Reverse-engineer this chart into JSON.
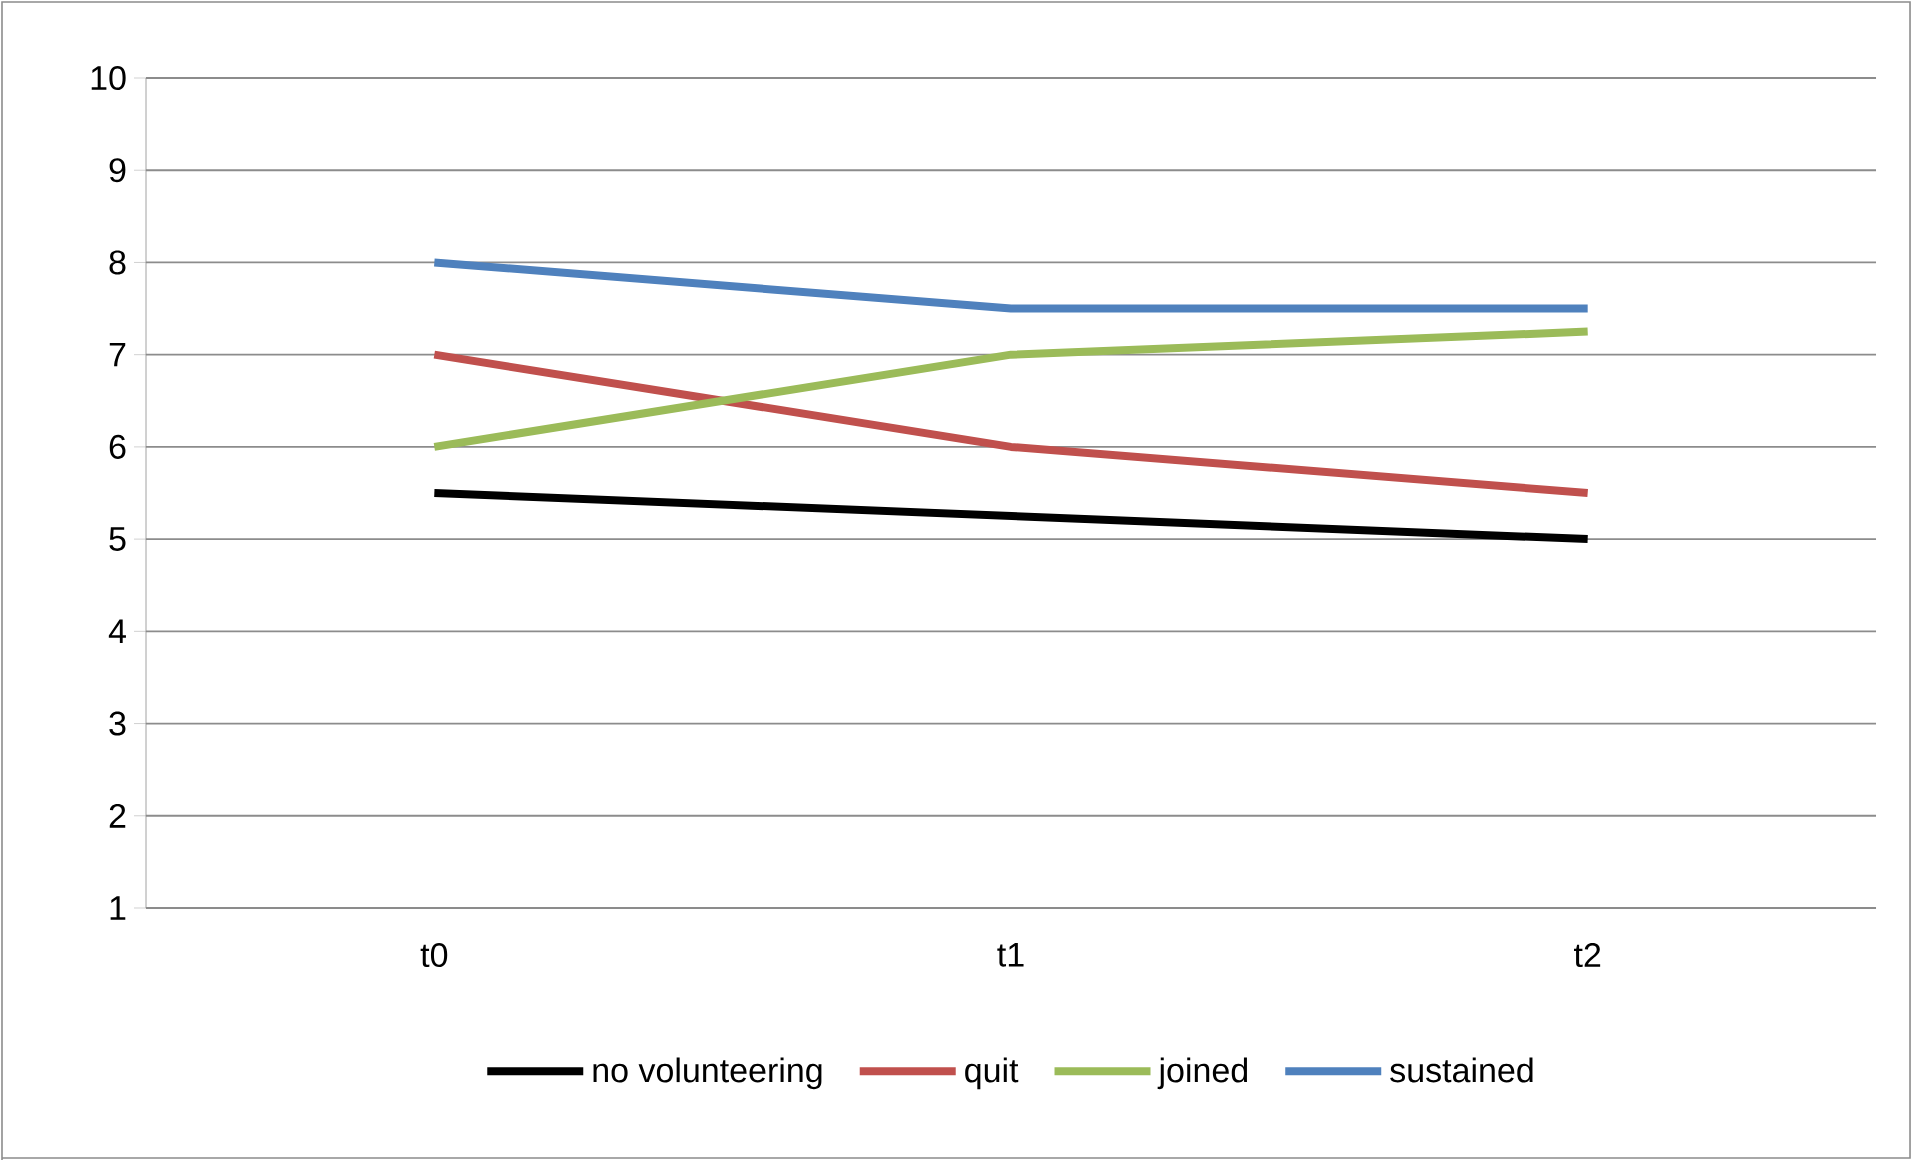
{
  "chart_data": {
    "type": "line",
    "categories": [
      "t0",
      "t1",
      "t2"
    ],
    "series": [
      {
        "name": "no volunteering",
        "color": "#000000",
        "values": [
          5.5,
          5.25,
          5.0
        ]
      },
      {
        "name": "quit",
        "color": "#c0504d",
        "values": [
          7,
          6,
          5.5
        ]
      },
      {
        "name": "joined",
        "color": "#9bbb59",
        "values": [
          6,
          7,
          7.25
        ]
      },
      {
        "name": "sustained",
        "color": "#4f81bd",
        "values": [
          8,
          7.5,
          7.5
        ]
      }
    ],
    "ylim": [
      1,
      10
    ],
    "yticks": [
      1,
      2,
      3,
      4,
      5,
      6,
      7,
      8,
      9,
      10
    ],
    "grid": "y",
    "legend": "bottom",
    "marker": "none",
    "line_style": "solid"
  }
}
